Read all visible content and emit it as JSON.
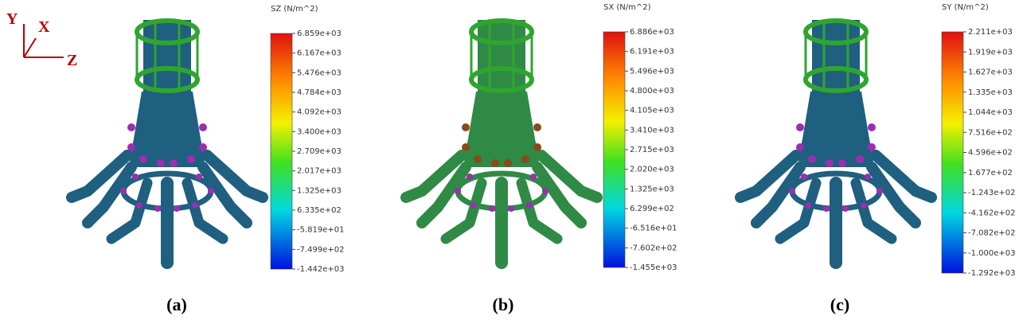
{
  "triad": {
    "y": "Y",
    "x": "X",
    "z": "Z"
  },
  "panels": [
    {
      "legend_title": "SZ (N/m^2)",
      "legend_ticks": [
        "6.859e+03",
        "6.167e+03",
        "5.476e+03",
        "4.784e+03",
        "4.092e+03",
        "3.400e+03",
        "2.709e+03",
        "2.017e+03",
        "1.325e+03",
        "6.335e+02",
        "-5.819e+01",
        "-7.499e+02",
        "-1.442e+03"
      ],
      "caption": "(a)"
    },
    {
      "legend_title": "SX (N/m^2)",
      "legend_ticks": [
        "6.886e+03",
        "6.191e+03",
        "5.496e+03",
        "4.800e+03",
        "4.105e+03",
        "3.410e+03",
        "2.715e+03",
        "2.020e+03",
        "1.325e+03",
        "6.299e+02",
        "-6.516e+01",
        "-7.602e+02",
        "-1.455e+03"
      ],
      "caption": "(b)"
    },
    {
      "legend_title": "SY (N/m^2)",
      "legend_ticks": [
        "2.211e+03",
        "1.919e+03",
        "1.627e+03",
        "1.335e+03",
        "1.044e+03",
        "7.516e+02",
        "4.596e+02",
        "1.677e+02",
        "-1.243e+02",
        "-4.162e+02",
        "-7.082e+02",
        "-1.000e+03",
        "-1.292e+03"
      ],
      "caption": "(c)"
    }
  ]
}
